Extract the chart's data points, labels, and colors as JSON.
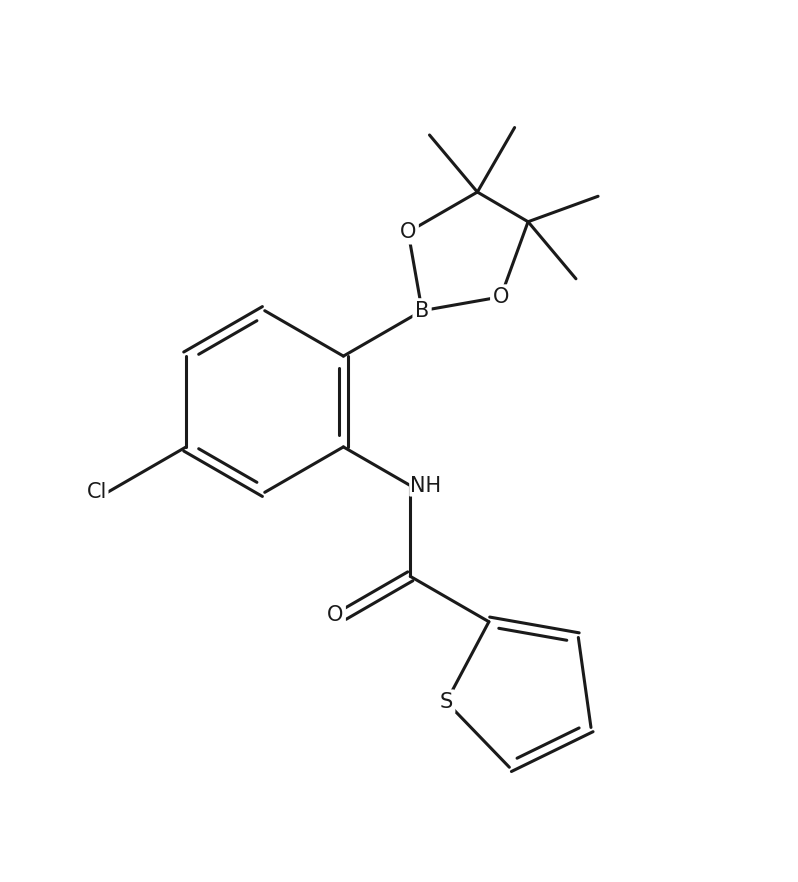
{
  "bg_color": "#ffffff",
  "line_color": "#1a1a1a",
  "line_width": 2.2,
  "font_size": 15,
  "font_family": "DejaVu Sans",
  "figsize": [
    7.98,
    8.82
  ],
  "dpi": 100,
  "xlim": [
    0,
    10
  ],
  "ylim": [
    0,
    11
  ]
}
